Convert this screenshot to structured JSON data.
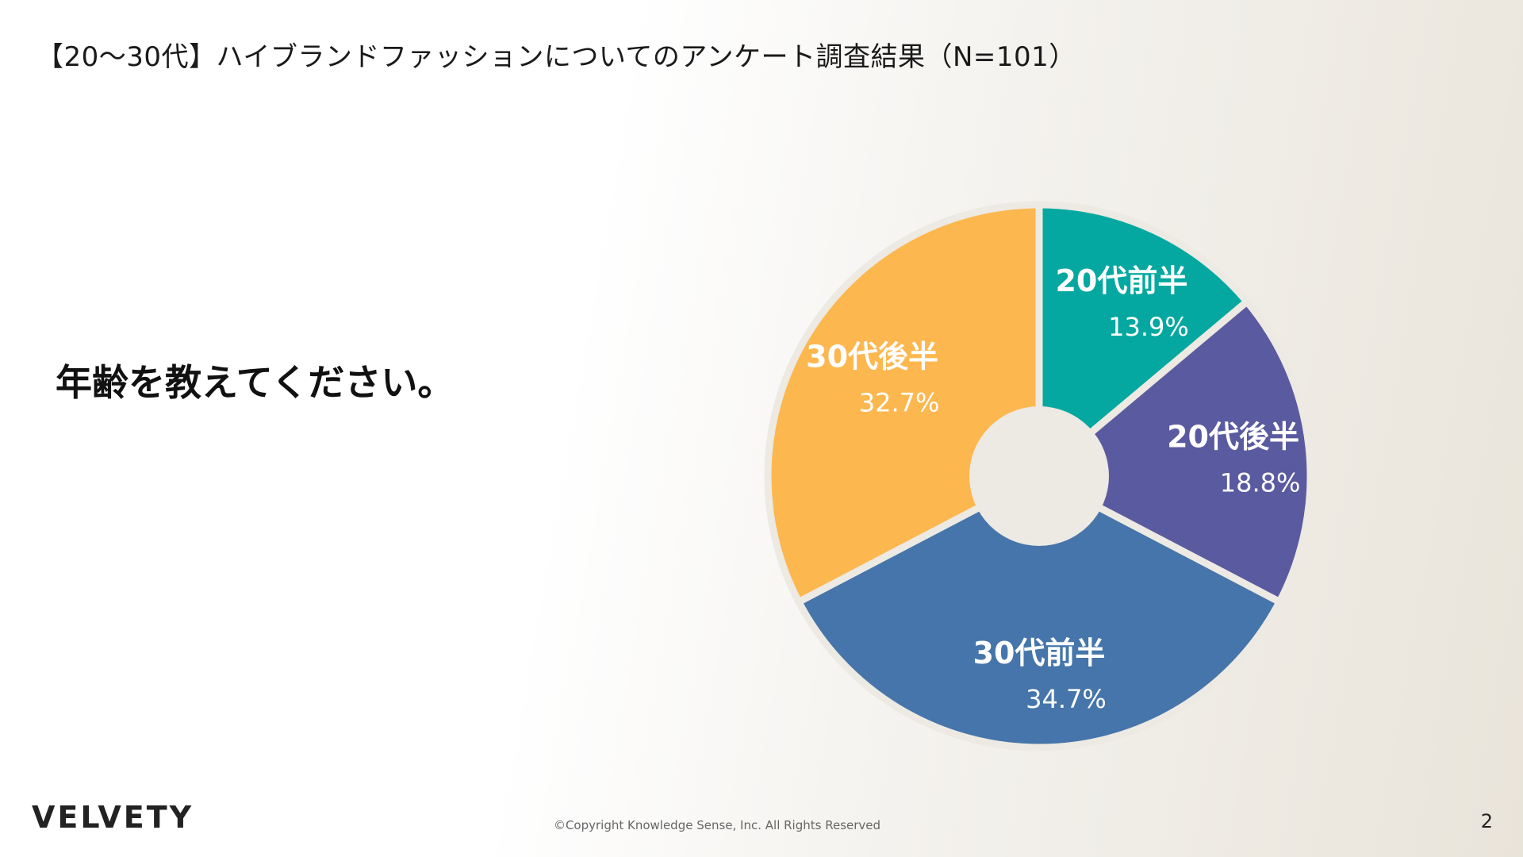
{
  "header": {
    "title": "【20〜30代】ハイブランドファッションについてのアンケート調査結果（N=101）"
  },
  "question": "年齢を教えてください。",
  "chart_data": {
    "type": "pie",
    "variant": "donut",
    "start": "12 o'clock",
    "direction": "clockwise",
    "slices": [
      {
        "label": "20代前半",
        "value": 13.9,
        "value_label": "13.9%",
        "color": "#05a8a0"
      },
      {
        "label": "20代後半",
        "value": 18.8,
        "value_label": "18.8%",
        "color": "#5a5aa0"
      },
      {
        "label": "30代前半",
        "value": 34.7,
        "value_label": "34.7%",
        "color": "#4575aa"
      },
      {
        "label": "30代後半",
        "value": 32.7,
        "value_label": "32.7%",
        "color": "#fdb74f"
      }
    ],
    "center_color": "#ede9e3",
    "separator_color": "#ede9e3"
  },
  "footer": {
    "logo": "VELVETY",
    "copyright": "©Copyright Knowledge Sense, Inc. All Rights Reserved",
    "page_number": "2"
  }
}
